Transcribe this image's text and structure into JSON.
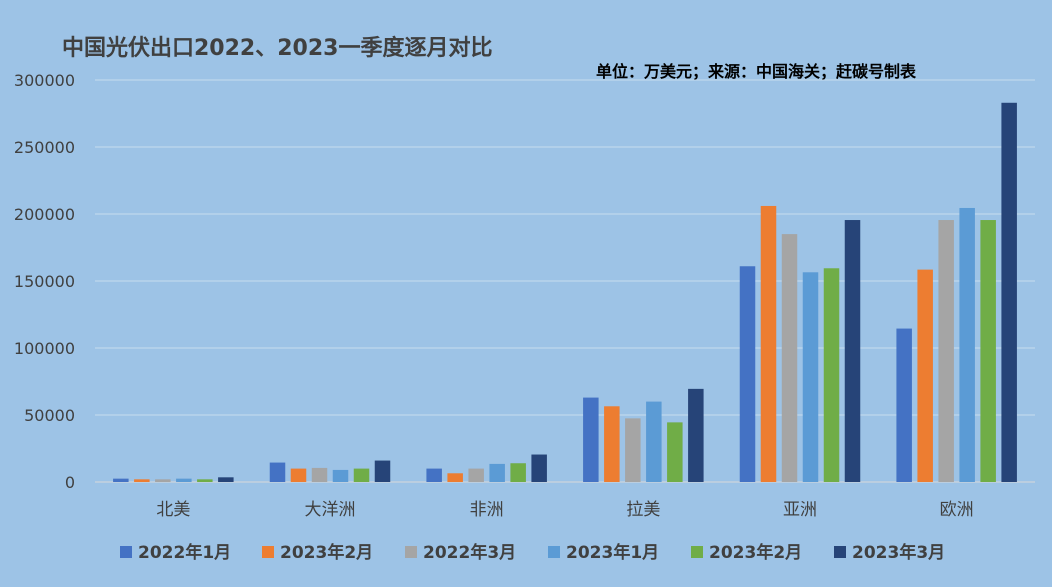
{
  "chart_data": {
    "type": "bar",
    "title": "中国光伏出口2022、2023一季度逐月对比",
    "subtitle": "单位：万美元；来源：中国海关；赶碳号制表",
    "xlabel": "",
    "ylabel": "",
    "ylim": [
      0,
      300000
    ],
    "yticks": [
      0,
      50000,
      100000,
      150000,
      200000,
      250000,
      300000
    ],
    "grid": true,
    "legend_position": "bottom",
    "categories": [
      "北美",
      "大洋洲",
      "非洲",
      "拉美",
      "亚洲",
      "欧洲"
    ],
    "series": [
      {
        "name": "2022年1月",
        "color": "#4472c4",
        "values": [
          2500,
          14500,
          10000,
          63000,
          161000,
          114500
        ]
      },
      {
        "name": "2023年2月",
        "color": "#ed7d31",
        "values": [
          2000,
          10000,
          6500,
          56500,
          206000,
          158500
        ]
      },
      {
        "name": "2022年3月",
        "color": "#a5a5a5",
        "values": [
          2000,
          10500,
          10000,
          47500,
          185000,
          195500
        ]
      },
      {
        "name": "2023年1月",
        "color": "#5b9bd5",
        "values": [
          2500,
          9000,
          13500,
          60000,
          156500,
          204500
        ]
      },
      {
        "name": "2023年2月",
        "color": "#70ad47",
        "values": [
          2000,
          10000,
          14000,
          44500,
          159500,
          195500
        ]
      },
      {
        "name": "2023年3月",
        "color": "#264478",
        "values": [
          3500,
          16000,
          20500,
          69500,
          195500,
          283000
        ]
      }
    ]
  }
}
